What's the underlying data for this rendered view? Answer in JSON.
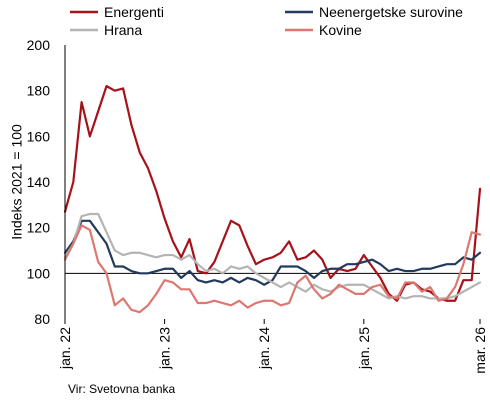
{
  "chart_data": {
    "type": "line",
    "ylabel": "Indeks 2021 = 100",
    "xlabel": "",
    "ylim": [
      80,
      200
    ],
    "yticks": [
      80,
      100,
      120,
      140,
      160,
      180,
      200
    ],
    "reference_line": 100,
    "x_start": "2022-01",
    "x_end": "2026-03",
    "xticks": [
      {
        "label": "jan. 22",
        "month": "2022-01"
      },
      {
        "label": "jan. 23",
        "month": "2023-01"
      },
      {
        "label": "jan. 24",
        "month": "2024-01"
      },
      {
        "label": "jan. 25",
        "month": "2025-01"
      },
      {
        "label": "mar. 26",
        "month": "2026-03"
      }
    ],
    "grid": false,
    "legend_placement": "top",
    "series": [
      {
        "name": "Energenti",
        "color": "#a5121a",
        "values": [
          127,
          140,
          175,
          160,
          171,
          182,
          180,
          181,
          165,
          153,
          146,
          136,
          124,
          114,
          107,
          115,
          101,
          100,
          105,
          114,
          123,
          121,
          112,
          104,
          106,
          107,
          109,
          114,
          106,
          107,
          110,
          106,
          98,
          102,
          101,
          102,
          108,
          103,
          98,
          91,
          88,
          95,
          96,
          93,
          92,
          89,
          88,
          88,
          97,
          97,
          137
        ]
      },
      {
        "name": "Neenergetske surovine",
        "color": "#223a5e",
        "values": [
          109,
          114,
          123,
          123,
          118,
          113,
          103,
          103,
          101,
          100,
          100,
          101,
          102,
          102,
          98,
          101,
          97,
          96,
          97,
          96,
          98,
          96,
          98,
          97,
          95,
          97,
          103,
          103,
          103,
          101,
          98,
          101,
          102,
          102,
          104,
          104,
          105,
          106,
          104,
          101,
          102,
          101,
          101,
          102,
          102,
          103,
          104,
          104,
          107,
          106,
          109
        ]
      },
      {
        "name": "Hrana",
        "color": "#b4b4b4",
        "values": [
          107,
          113,
          125,
          126,
          126,
          118,
          110,
          108,
          109,
          109,
          108,
          107,
          108,
          108,
          106,
          108,
          104,
          101,
          102,
          100,
          103,
          102,
          103,
          100,
          98,
          96,
          94,
          96,
          94,
          92,
          95,
          93,
          92,
          94,
          95,
          95,
          95,
          93,
          91,
          89,
          90,
          89,
          90,
          90,
          89,
          89,
          89,
          90,
          92,
          94,
          96
        ]
      },
      {
        "name": "Kovine",
        "color": "#dd7870",
        "values": [
          106,
          113,
          121,
          119,
          105,
          100,
          86,
          89,
          84,
          83,
          86,
          91,
          97,
          96,
          93,
          93,
          87,
          87,
          88,
          87,
          86,
          88,
          85,
          87,
          88,
          88,
          86,
          87,
          96,
          99,
          93,
          89,
          91,
          95,
          93,
          91,
          91,
          94,
          95,
          90,
          89,
          96,
          96,
          92,
          94,
          88,
          89,
          94,
          104,
          118,
          117
        ]
      }
    ],
    "source": "Vir: Svetovna banka"
  }
}
